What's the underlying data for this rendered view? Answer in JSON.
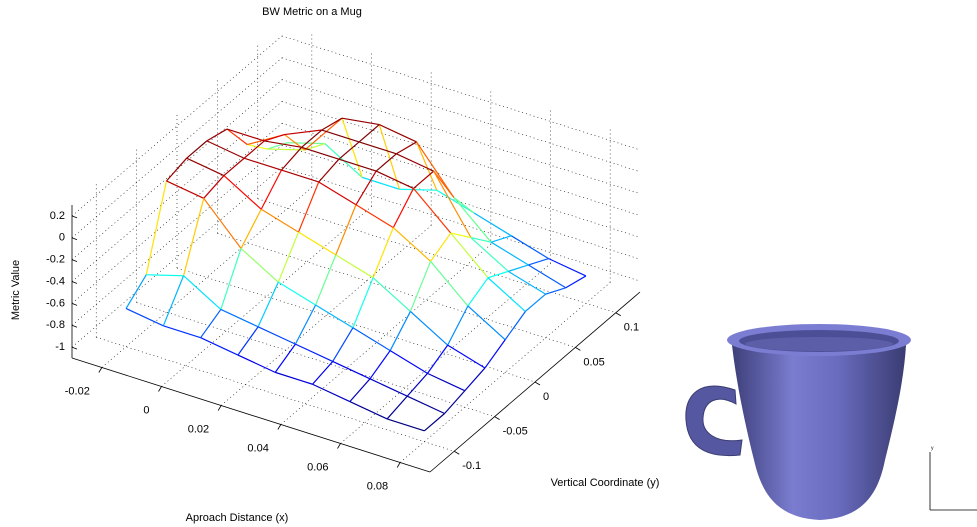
{
  "chart_data": {
    "type": "mesh3d",
    "title": "BW Metric on a Mug",
    "x_label": "Aproach Distance (x)",
    "y_label": "Vertical Coordinate (y)",
    "z_label": "Metric Value",
    "x": [
      -0.02,
      -0.0075,
      0.005,
      0.0175,
      0.03,
      0.0425,
      0.055,
      0.0675,
      0.08
    ],
    "y": [
      -0.1,
      -0.075,
      -0.05,
      -0.025,
      0,
      0.025,
      0.05,
      0.075,
      0.1
    ],
    "z": [
      [
        -0.75,
        -0.6,
        0.1,
        0.15,
        0.15,
        0.1,
        -0.2,
        -0.4,
        -0.5
      ],
      [
        -0.8,
        -0.5,
        0.05,
        0.1,
        0.1,
        0.1,
        0.0,
        -0.3,
        -0.4
      ],
      [
        -0.8,
        -0.7,
        -0.3,
        -0.1,
        0.1,
        0.15,
        0.15,
        0.1,
        -0.6
      ],
      [
        -0.85,
        -0.75,
        -0.5,
        -0.2,
        0.1,
        0.15,
        0.15,
        0.15,
        -0.6
      ],
      [
        -0.9,
        -0.8,
        -0.6,
        -0.3,
        0.0,
        0.15,
        0.15,
        0.1,
        -0.5
      ],
      [
        -0.9,
        -0.85,
        -0.7,
        -0.4,
        -0.1,
        0.1,
        0.1,
        -0.3,
        -0.6
      ],
      [
        -0.95,
        -0.9,
        -0.8,
        -0.6,
        -0.3,
        -0.2,
        -0.4,
        -0.6,
        -0.7
      ],
      [
        -1.0,
        -0.95,
        -0.9,
        -0.8,
        -0.6,
        -0.5,
        -0.6,
        -0.7,
        -0.8
      ],
      [
        -1.0,
        -1.0,
        -0.95,
        -0.9,
        -0.8,
        -0.7,
        -0.7,
        -0.8,
        -0.85
      ]
    ],
    "xlim": [
      -0.03,
      0.09
    ],
    "ylim": [
      -0.13,
      0.13
    ],
    "zlim": [
      -1.1,
      0.3
    ],
    "xticks": [
      -0.02,
      0,
      0.02,
      0.04,
      0.06,
      0.08
    ],
    "yticks": [
      -0.1,
      -0.05,
      0,
      0.05,
      0.1
    ],
    "zticks": [
      -1,
      -0.8,
      -0.6,
      -0.4,
      -0.2,
      0,
      0.2
    ],
    "colormap": "jet",
    "grid": true,
    "inset_axis_label": "y"
  }
}
